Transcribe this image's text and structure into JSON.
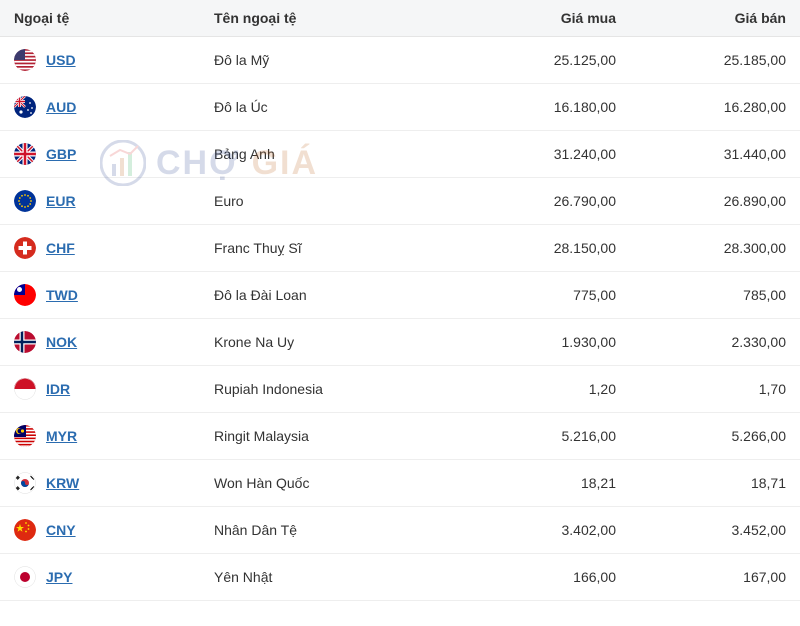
{
  "table": {
    "headers": {
      "currency": "Ngoại tệ",
      "name": "Tên ngoại tệ",
      "buy": "Giá mua",
      "sell": "Giá bán"
    },
    "rows": [
      {
        "code": "USD",
        "name": "Đô la Mỹ",
        "buy": "25.125,00",
        "buy_trend": "down",
        "sell": "25.185,00",
        "sell_trend": "down",
        "flag": "usd"
      },
      {
        "code": "AUD",
        "name": "Đô la Úc",
        "buy": "16.180,00",
        "buy_trend": "up",
        "sell": "16.280,00",
        "sell_trend": "up",
        "flag": "aud"
      },
      {
        "code": "GBP",
        "name": "Bảng Anh",
        "buy": "31.240,00",
        "buy_trend": "up",
        "sell": "31.440,00",
        "sell_trend": "up",
        "flag": "gbp"
      },
      {
        "code": "EUR",
        "name": "Euro",
        "buy": "26.790,00",
        "buy_trend": "up",
        "sell": "26.890,00",
        "sell_trend": "up",
        "flag": "eur"
      },
      {
        "code": "CHF",
        "name": "Franc Thuỵ Sĩ",
        "buy": "28.150,00",
        "buy_trend": "up",
        "sell": "28.300,00",
        "sell_trend": "up",
        "flag": "chf"
      },
      {
        "code": "TWD",
        "name": "Đô la Đài Loan",
        "buy": "775,00",
        "buy_trend": "up",
        "sell": "785,00",
        "sell_trend": "up",
        "flag": "twd"
      },
      {
        "code": "NOK",
        "name": "Krone Na Uy",
        "buy": "1.930,00",
        "buy_trend": "up",
        "sell": "2.330,00",
        "sell_trend": "up",
        "flag": "nok"
      },
      {
        "code": "IDR",
        "name": "Rupiah Indonesia",
        "buy": "1,20",
        "buy_trend": "up",
        "sell": "1,70",
        "sell_trend": "up",
        "flag": "idr"
      },
      {
        "code": "MYR",
        "name": "Ringit Malaysia",
        "buy": "5.216,00",
        "buy_trend": "neutral",
        "sell": "5.266,00",
        "sell_trend": "neutral",
        "flag": "myr"
      },
      {
        "code": "KRW",
        "name": "Won Hàn Quốc",
        "buy": "18,21",
        "buy_trend": "neutral",
        "sell": "18,71",
        "sell_trend": "neutral",
        "flag": "krw"
      },
      {
        "code": "CNY",
        "name": "Nhân Dân Tệ",
        "buy": "3.402,00",
        "buy_trend": "down",
        "sell": "3.452,00",
        "sell_trend": "down",
        "flag": "cny"
      },
      {
        "code": "JPY",
        "name": "Yên Nhật",
        "buy": "166,00",
        "buy_trend": "up",
        "sell": "167,00",
        "sell_trend": "up",
        "flag": "jpy"
      }
    ]
  },
  "watermark": {
    "text1": "CHỢ",
    "text2": " GIÁ"
  },
  "colors": {
    "header_bg": "#f5f6f7",
    "row_border": "#eeeeee",
    "link": "#2b6cb0",
    "up": "#16a34a",
    "down": "#dc2626",
    "neutral": "#333333"
  }
}
